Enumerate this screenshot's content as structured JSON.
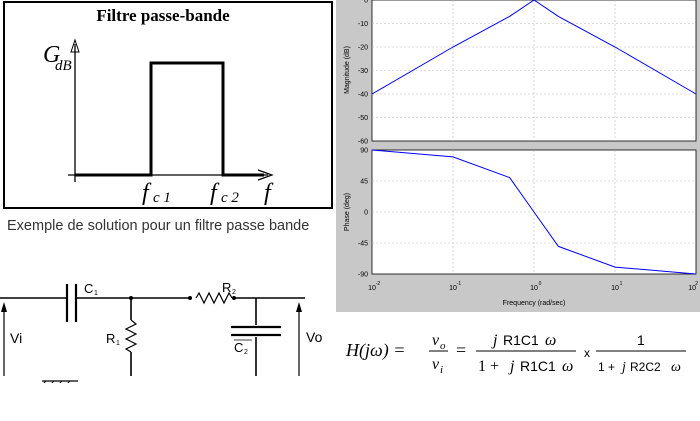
{
  "ideal_filter": {
    "title": "Filtre passe-bande",
    "y_axis_label_main": "G",
    "y_axis_label_sub": "dB",
    "x_axis_label": "f",
    "cutoff_low_main": "f",
    "cutoff_low_sub": "c 1",
    "cutoff_high_main": "f",
    "cutoff_high_sub": "c 2"
  },
  "caption": "Exemple de solution pour un filtre passe bande",
  "bode": {
    "magnitude_ylabel": "Magnitude (dB)",
    "magnitude_ticks": [
      "0",
      "-10",
      "-20",
      "-30",
      "-40",
      "-50",
      "-60"
    ],
    "phase_ylabel": "Phase (deg)",
    "phase_ticks": [
      "90",
      "45",
      "0",
      "-45",
      "-90"
    ],
    "x_tick_bases": [
      "10",
      "10",
      "10",
      "10",
      "10"
    ],
    "x_tick_exps": [
      "-2",
      "-1",
      "0",
      "1",
      "2"
    ],
    "xlabel": "Frequency  (rad/sec)",
    "colors": {
      "curve": "#0000ff",
      "background": "#c8c8c8",
      "plot": "#ffffff"
    }
  },
  "chart_data": [
    {
      "type": "line",
      "title": "",
      "xlabel": "Frequency  (rad/sec)",
      "ylabel": "Magnitude (dB)",
      "xscale": "log",
      "xlim": [
        0.01,
        100
      ],
      "ylim": [
        -60,
        0
      ],
      "grid": true,
      "series": [
        {
          "x": [
            0.01,
            0.1,
            0.5,
            1,
            2,
            10,
            100
          ],
          "y": [
            -40,
            -20,
            -7,
            0,
            -7,
            -20,
            -40
          ]
        }
      ]
    },
    {
      "type": "line",
      "title": "",
      "xlabel": "Frequency  (rad/sec)",
      "ylabel": "Phase (deg)",
      "xscale": "log",
      "xlim": [
        0.01,
        100
      ],
      "ylim": [
        -90,
        90
      ],
      "grid": true,
      "series": [
        {
          "x": [
            0.01,
            0.1,
            0.5,
            1,
            2,
            10,
            100
          ],
          "y": [
            90,
            80,
            50,
            0,
            -50,
            -80,
            -90
          ]
        }
      ]
    }
  ],
  "circuit": {
    "vi": "Vi",
    "vo": "Vo",
    "c1_main": "C",
    "c1_sub": "1",
    "r1_main": "R",
    "r1_sub": "1",
    "r2_main": "R",
    "r2_sub": "2",
    "c2_main": "C",
    "c2_sub": "2"
  },
  "formula": {
    "lhs": "H(jω) =",
    "ratio_num": "v",
    "ratio_num_sub": "o",
    "ratio_den": "v",
    "ratio_den_sub": "i",
    "eq": "=",
    "f1_num_j": "j",
    "f1_num_rc": "R1C1",
    "f1_num_w": "ω",
    "f1_den_1": "1 +",
    "f1_den_j": "j",
    "f1_den_rc": "R1C1",
    "f1_den_w": "ω",
    "times": "x",
    "f2_num": "1",
    "f2_den_1": "1 +",
    "f2_den_j": "j",
    "f2_den_rc": "R2C2",
    "f2_den_w": "ω"
  }
}
